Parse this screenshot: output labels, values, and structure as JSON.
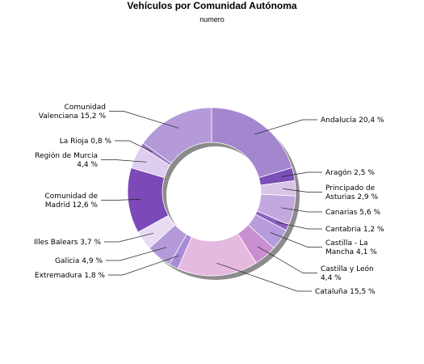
{
  "chart_data": {
    "type": "pie",
    "style": "donut",
    "title": "Vehículos por Comunidad Autónoma",
    "subtitle": "numero",
    "slices": [
      {
        "label": [
          "Andalucía 20,4 %"
        ],
        "value": 20.4,
        "color": "#a486cf"
      },
      {
        "label": [
          "Aragón 2,5 %"
        ],
        "value": 2.5,
        "color": "#7a4fb9"
      },
      {
        "label": [
          "Principado de",
          "Asturias 2,9 %"
        ],
        "value": 2.9,
        "color": "#d9c4e8"
      },
      {
        "label": [
          "Canarias 5,6 %"
        ],
        "value": 5.6,
        "color": "#c2a8df"
      },
      {
        "label": [
          "Cantabria 1,2 %"
        ],
        "value": 1.2,
        "color": "#8a5fc0"
      },
      {
        "label": [
          "Castilla - La",
          "Mancha 4,1 %"
        ],
        "value": 4.1,
        "color": "#b69cdc"
      },
      {
        "label": [
          "Castilla y León",
          "4,4 %"
        ],
        "value": 4.4,
        "color": "#c98fd0"
      },
      {
        "label": [
          "Cataluña 15,5 %"
        ],
        "value": 15.5,
        "color": "#e6b9e0"
      },
      {
        "label": [
          "Extremadura 1,8 %"
        ],
        "value": 1.8,
        "color": "#a98ad8"
      },
      {
        "label": [
          "Galicia 4,9 %"
        ],
        "value": 4.9,
        "color": "#b49ad8"
      },
      {
        "label": [
          "Illes Balears 3,7 %"
        ],
        "value": 3.7,
        "color": "#e8dcf2"
      },
      {
        "label": [
          "Comunidad de",
          "Madrid 12,6 %"
        ],
        "value": 12.6,
        "color": "#7c49b8"
      },
      {
        "label": [
          "Región de Murcia",
          "4,4 %"
        ],
        "value": 4.4,
        "color": "#ddcdee"
      },
      {
        "label": [
          "La Rioja 0,8 %"
        ],
        "value": 0.8,
        "color": "#9a78c8"
      },
      {
        "label": [
          "Comunidad",
          "Valenciana 15,2 %"
        ],
        "value": 15.2,
        "color": "#b49ad8"
      }
    ]
  }
}
